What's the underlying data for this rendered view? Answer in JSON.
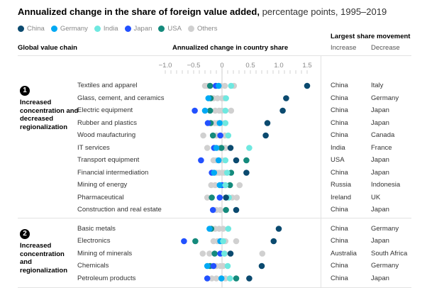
{
  "title": {
    "bold": "Annualized change in the share of foreign value added,",
    "rest": " percentage points, 1995–2019"
  },
  "legend": [
    {
      "name": "China",
      "color": "#0b4a6f"
    },
    {
      "name": "Germany",
      "color": "#00a9f4"
    },
    {
      "name": "India",
      "color": "#6fe8e0"
    },
    {
      "name": "Japan",
      "color": "#2251ff"
    },
    {
      "name": "USA",
      "color": "#148a7c"
    },
    {
      "name": "Others",
      "color": "#d0d0d0"
    }
  ],
  "headers": {
    "chain": "Global value chain",
    "change": "Annualized change in country share",
    "movement": "Largest share movement",
    "increase": "Increase",
    "decrease": "Decrease"
  },
  "groups": [
    {
      "number": "1",
      "label": "Increased concentration and decreased regionalization"
    },
    {
      "number": "2",
      "label": "Increased concentration and regionalization"
    }
  ],
  "chart_data": {
    "type": "scatter",
    "title": "Annualized change in the share of foreign value added, percentage points, 1995–2019",
    "xlabel": "Annualized change in country share",
    "xlim": [
      -1.0,
      1.5
    ],
    "xticks": [
      "−1.0",
      "−0.5",
      "0",
      "0.5",
      "1.0",
      "1.5"
    ],
    "xtick_values": [
      -1.0,
      -0.5,
      0,
      0.5,
      1.0,
      1.5
    ],
    "grid": false,
    "legend_position": "top-left",
    "rows": [
      {
        "group": 0,
        "chain": "Textiles and apparel",
        "increase": "China",
        "decrease": "Italy",
        "others": [
          -0.3,
          -0.25,
          -0.02,
          0.05,
          0.21
        ],
        "USA": -0.21,
        "Japan": -0.11,
        "Germany": -0.06,
        "India": 0.16,
        "China": 1.5
      },
      {
        "group": 0,
        "chain": "Glass, cement, and ceramics",
        "increase": "China",
        "decrease": "Germany",
        "others": [
          -0.15,
          -0.08,
          0.0,
          0.04
        ],
        "Germany": -0.24,
        "USA": -0.2,
        "India": 0.07,
        "China": 1.13
      },
      {
        "group": 0,
        "chain": "Electric equipment",
        "increase": "China",
        "decrease": "Japan",
        "others": [
          -0.12,
          -0.05,
          0.0,
          0.16
        ],
        "Japan": -0.48,
        "Germany": -0.3,
        "USA": -0.21,
        "India": 0.06,
        "China": 1.07
      },
      {
        "group": 0,
        "chain": "Rubber and plastics",
        "increase": "China",
        "decrease": "Japan",
        "others": [
          -0.13,
          -0.08,
          0.0
        ],
        "Japan": -0.25,
        "USA": -0.2,
        "Germany": -0.04,
        "India": 0.06,
        "China": 0.8
      },
      {
        "group": 0,
        "chain": "Wood maufacturing",
        "increase": "China",
        "decrease": "Canada",
        "others": [
          -0.33,
          -0.1,
          0.05
        ],
        "USA": -0.16,
        "Japan": -0.03,
        "India": 0.11,
        "China": 0.77
      },
      {
        "group": 0,
        "chain": "IT services",
        "increase": "India",
        "decrease": "France",
        "others": [
          -0.26,
          -0.05,
          0.06
        ],
        "Japan": -0.14,
        "Germany": -0.1,
        "USA": -0.01,
        "China": 0.15,
        "India": 0.48
      },
      {
        "group": 0,
        "chain": "Transport equipment",
        "increase": "USA",
        "decrease": "Japan",
        "others": [
          -0.15,
          -0.1,
          0.0
        ],
        "Japan": -0.37,
        "Germany": -0.06,
        "India": 0.06,
        "China": 0.25,
        "USA": 0.43
      },
      {
        "group": 0,
        "chain": "Financial intermediation",
        "increase": "China",
        "decrease": "Japan",
        "others": [
          -0.1,
          -0.05,
          0.0,
          0.04
        ],
        "Japan": -0.18,
        "Germany": -0.14,
        "India": 0.09,
        "USA": 0.16,
        "China": 0.43
      },
      {
        "group": 0,
        "chain": "Mining of energy",
        "increase": "Russia",
        "decrease": "Indonesia",
        "others": [
          -0.19,
          -0.12,
          0.05,
          0.31
        ],
        "Germany": -0.04,
        "Japan": 0.0,
        "India": 0.06,
        "USA": 0.14
      },
      {
        "group": 0,
        "chain": "Pharmaceutical",
        "increase": "Ireland",
        "decrease": "UK",
        "others": [
          -0.26,
          0.18,
          0.26
        ],
        "USA": -0.18,
        "Japan": -0.04,
        "China": 0.07,
        "India": 0.12
      },
      {
        "group": 0,
        "chain": "Construction and real estate",
        "increase": "China",
        "decrease": "Japan",
        "others": [
          -0.1,
          -0.03
        ],
        "Japan": -0.16,
        "USA": 0.07,
        "China": 0.25
      },
      {
        "group": 1,
        "chain": "Basic metals",
        "increase": "China",
        "decrease": "Germany",
        "others": [
          -0.12,
          -0.05,
          0.02
        ],
        "Germany": -0.22,
        "USA": -0.19,
        "India": 0.11,
        "China": 1.0
      },
      {
        "group": 1,
        "chain": "Electronics",
        "increase": "China",
        "decrease": "Japan",
        "others": [
          -0.15,
          -0.08,
          0.06,
          0.25
        ],
        "Japan": -0.67,
        "USA": -0.47,
        "Germany": -0.03,
        "India": 0.02,
        "China": 0.91
      },
      {
        "group": 1,
        "chain": "Mining of minerals",
        "increase": "Australia",
        "decrease": "South Africa",
        "others": [
          -0.34,
          -0.22,
          0.05,
          0.71
        ],
        "USA": -0.13,
        "Japan": -0.03,
        "India": 0.04,
        "China": 0.15
      },
      {
        "group": 1,
        "chain": "Chemicals",
        "increase": "China",
        "decrease": "Germany",
        "others": [
          -0.1,
          -0.03,
          0.02
        ],
        "Germany": -0.26,
        "USA": -0.21,
        "Japan": -0.15,
        "India": 0.1,
        "China": 0.7
      },
      {
        "group": 1,
        "chain": "Petroleum products",
        "increase": "China",
        "decrease": "Japan",
        "others": [
          -0.18,
          -0.1,
          0.06
        ],
        "Japan": -0.26,
        "Germany": -0.01,
        "India": 0.14,
        "USA": 0.25,
        "China": 0.48
      }
    ]
  }
}
